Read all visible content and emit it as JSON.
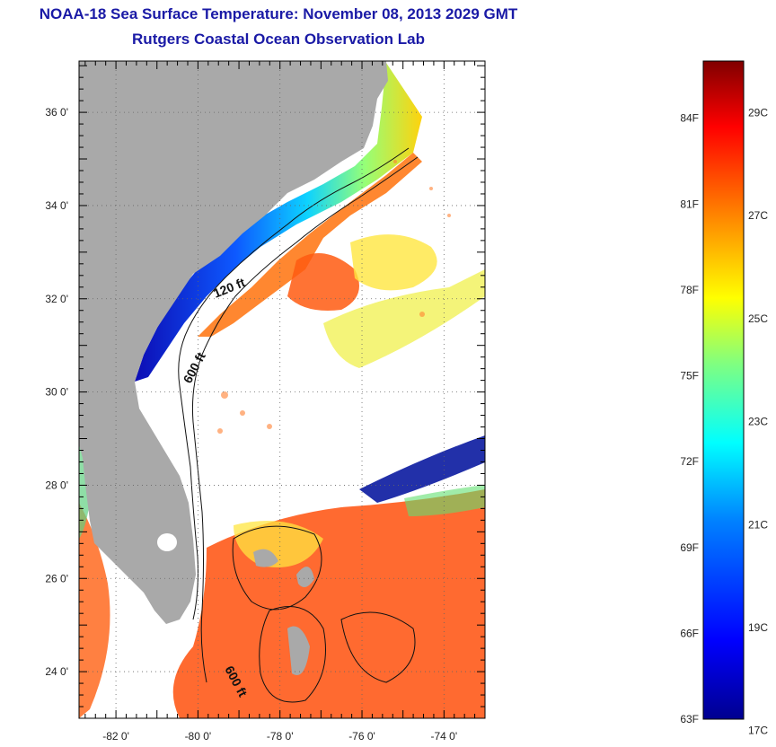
{
  "title": "NOAA-18 Sea Surface Temperature:  November 08, 2013 2029 GMT",
  "subtitle": "Rutgers Coastal Ocean Observation Lab",
  "lat_labels": [
    {
      "value": 36,
      "text": "36 0'"
    },
    {
      "value": 34,
      "text": "34 0'"
    },
    {
      "value": 32,
      "text": "32 0'"
    },
    {
      "value": 30,
      "text": "30 0'"
    },
    {
      "value": 28,
      "text": "28 0'"
    },
    {
      "value": 26,
      "text": "26 0'"
    },
    {
      "value": 24,
      "text": "24 0'"
    }
  ],
  "lon_labels": [
    {
      "value": -82,
      "text": "-82 0'"
    },
    {
      "value": -80,
      "text": "-80 0'"
    },
    {
      "value": -78,
      "text": "-78 0'"
    },
    {
      "value": -76,
      "text": "-76 0'"
    },
    {
      "value": -74,
      "text": "-74 0'"
    }
  ],
  "map_extent": {
    "lon_min": -82.9,
    "lon_max": -73.0,
    "lat_min": 23.0,
    "lat_max": 37.1
  },
  "contour_labels": [
    {
      "text": "120 ft"
    },
    {
      "text": "600 ft"
    },
    {
      "text": "600 ft"
    }
  ],
  "colorbar": {
    "min_f": 63,
    "max_f": 86,
    "fahrenheit_labels": [
      {
        "value": 63,
        "text": "63F"
      },
      {
        "value": 66,
        "text": "66F"
      },
      {
        "value": 69,
        "text": "69F"
      },
      {
        "value": 72,
        "text": "72F"
      },
      {
        "value": 75,
        "text": "75F"
      },
      {
        "value": 78,
        "text": "78F"
      },
      {
        "value": 81,
        "text": "81F"
      },
      {
        "value": 84,
        "text": "84F"
      }
    ],
    "celsius_labels": [
      {
        "value": 17,
        "text": "17C"
      },
      {
        "value": 19,
        "text": "19C"
      },
      {
        "value": 21,
        "text": "21C"
      },
      {
        "value": 23,
        "text": "23C"
      },
      {
        "value": 25,
        "text": "25C"
      },
      {
        "value": 27,
        "text": "27C"
      },
      {
        "value": 29,
        "text": "29C"
      }
    ]
  },
  "colors": {
    "land": "#a9a9a9",
    "title": "#1a1aa6",
    "scale": [
      "#00008f",
      "#0000ff",
      "#0080ff",
      "#00ffff",
      "#80ff80",
      "#ffff00",
      "#ff8000",
      "#ff0000",
      "#800000"
    ]
  }
}
